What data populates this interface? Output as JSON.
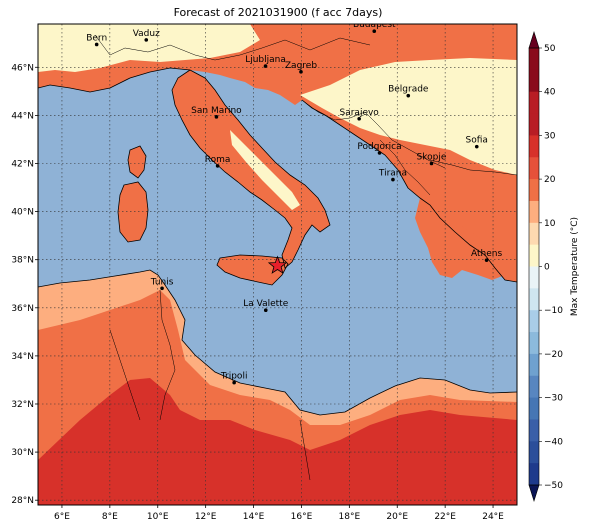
{
  "title": "Forecast of 2021031900 (f acc 7days)",
  "colors": {
    "sea": "#8fb2d6",
    "land_pale": "#fdf6c9",
    "land_light": "#fdae7f",
    "land_mid": "#f07046",
    "land_hot": "#d7312a",
    "frame": "#000000",
    "marker_star": "#e8202a"
  },
  "axes": {
    "lon_ticks": [
      "6°E",
      "8°E",
      "10°E",
      "12°E",
      "14°E",
      "16°E",
      "18°E",
      "20°E",
      "22°E",
      "24°E"
    ],
    "lat_ticks": [
      "28°N",
      "30°N",
      "32°N",
      "34°N",
      "36°N",
      "38°N",
      "40°N",
      "42°N",
      "44°N",
      "46°N"
    ],
    "gridlines": "dotted"
  },
  "cities": [
    {
      "name": "Bern",
      "lon": 7.45,
      "lat": 46.95
    },
    {
      "name": "Vaduz",
      "lon": 9.52,
      "lat": 47.14
    },
    {
      "name": "Budapest",
      "lon": 19.04,
      "lat": 47.5
    },
    {
      "name": "Ljubljana",
      "lon": 14.5,
      "lat": 46.05
    },
    {
      "name": "Zagreb",
      "lon": 15.98,
      "lat": 45.81
    },
    {
      "name": "Belgrade",
      "lon": 20.46,
      "lat": 44.82
    },
    {
      "name": "San Marino",
      "lon": 12.45,
      "lat": 43.94
    },
    {
      "name": "Sarajevo",
      "lon": 18.41,
      "lat": 43.86
    },
    {
      "name": "Podgorica",
      "lon": 19.26,
      "lat": 42.44
    },
    {
      "name": "Sofia",
      "lon": 23.32,
      "lat": 42.7
    },
    {
      "name": "Roma",
      "lon": 12.5,
      "lat": 41.9
    },
    {
      "name": "Skopje",
      "lon": 21.43,
      "lat": 42.0
    },
    {
      "name": "Tirana",
      "lon": 19.82,
      "lat": 41.33
    },
    {
      "name": "Athens",
      "lon": 23.73,
      "lat": 37.98
    },
    {
      "name": "Tunis",
      "lon": 10.18,
      "lat": 36.81
    },
    {
      "name": "La Valette",
      "lon": 14.51,
      "lat": 35.9
    },
    {
      "name": "Tripoli",
      "lon": 13.19,
      "lat": 32.89
    }
  ],
  "marker": {
    "type": "star",
    "lon": 15.0,
    "lat": 37.75
  },
  "colorbar": {
    "label": "Max Temperature (°C)",
    "ticks": [
      "50",
      "40",
      "30",
      "20",
      "10",
      "0",
      "−10",
      "−20",
      "−30",
      "−40",
      "−50"
    ],
    "extend": "both"
  }
}
